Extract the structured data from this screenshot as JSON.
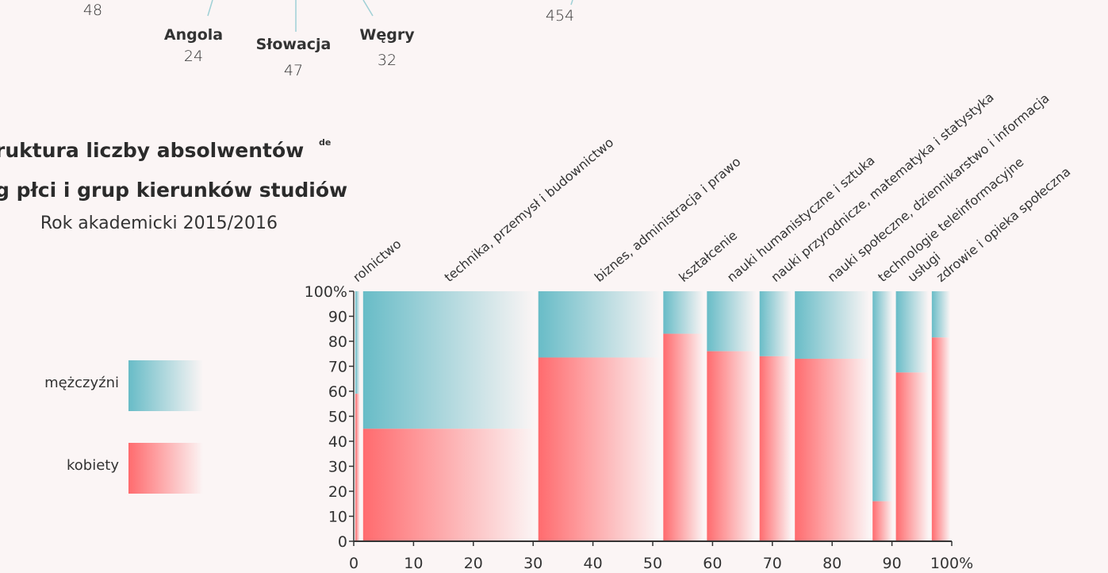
{
  "top_fragment": {
    "items": [
      {
        "label": "",
        "value": "48"
      },
      {
        "label": "Angola",
        "value": "24"
      },
      {
        "label": "Słowacja",
        "value": "47"
      },
      {
        "label": "Węgry",
        "value": "32"
      },
      {
        "label": "",
        "value": "454"
      }
    ]
  },
  "header": {
    "title_line1": "ruktura liczby absolwentów",
    "title_sup": "de",
    "title_line2": "g płci i grup kierunków studiów",
    "subtitle": "Rok akademicki 2015/2016"
  },
  "legend": {
    "men_label": "mężczyźni",
    "women_label": "kobiety"
  },
  "colors": {
    "men": "#68bcc7",
    "women": "#ff6b6e",
    "background": "#fbf5f5"
  },
  "chart_data": {
    "type": "mosaic",
    "title": "",
    "xlim": [
      0,
      100
    ],
    "ylim": [
      0,
      100
    ],
    "x_ticks": [
      "0",
      "10",
      "20",
      "30",
      "40",
      "50",
      "60",
      "70",
      "80",
      "90",
      "100%"
    ],
    "y_ticks": [
      "0",
      "10",
      "20",
      "30",
      "40",
      "50",
      "60",
      "70",
      "80",
      "90",
      "100%"
    ],
    "series": [
      {
        "name": "mężczyźni"
      },
      {
        "name": "kobiety"
      }
    ],
    "categories": [
      {
        "name": "rolnictwo",
        "x_start": 0,
        "x_end": 1.3,
        "women_pct": 59
      },
      {
        "name": "technika, przemysł i budownictwo",
        "x_start": 1.3,
        "x_end": 30.6,
        "women_pct": 45
      },
      {
        "name": "biznes, administracja i prawo",
        "x_start": 30.6,
        "x_end": 51.5,
        "women_pct": 73.5
      },
      {
        "name": "kształcenie",
        "x_start": 51.5,
        "x_end": 58.8,
        "women_pct": 83
      },
      {
        "name": "nauki humanistyczne i sztuka",
        "x_start": 58.8,
        "x_end": 67.6,
        "women_pct": 76
      },
      {
        "name": "nauki przyrodnicze, matematyka i statystyka",
        "x_start": 67.6,
        "x_end": 73.5,
        "women_pct": 74
      },
      {
        "name": "nauki społeczne, dziennikarstwo i informacja",
        "x_start": 73.5,
        "x_end": 86.5,
        "women_pct": 73
      },
      {
        "name": "technologie teleinformacyjne",
        "x_start": 86.5,
        "x_end": 90.4,
        "women_pct": 16
      },
      {
        "name": "usługi",
        "x_start": 90.4,
        "x_end": 96.4,
        "women_pct": 67.5
      },
      {
        "name": "zdrowie i opieka społeczna",
        "x_start": 96.4,
        "x_end": 100,
        "women_pct": 81.5
      }
    ]
  }
}
